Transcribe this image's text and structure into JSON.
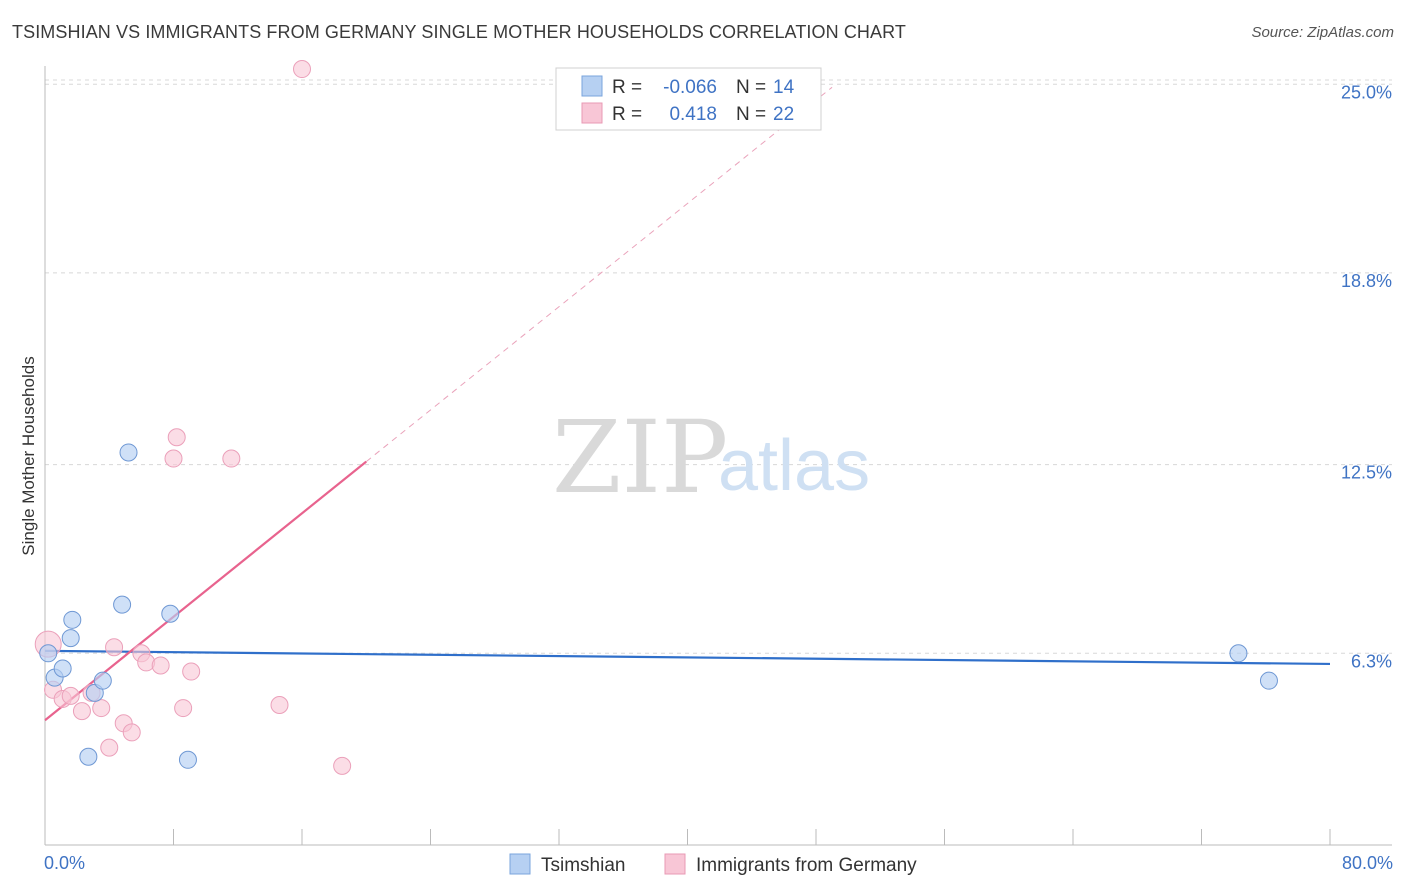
{
  "title": "TSIMSHIAN VS IMMIGRANTS FROM GERMANY SINGLE MOTHER HOUSEHOLDS CORRELATION CHART",
  "source": "Source: ZipAtlas.com",
  "watermark": {
    "zip": "ZIP",
    "atlas": "atlas"
  },
  "colors": {
    "blue": "#3f73c4",
    "blue_line": "#2f6fca",
    "blue_fill": "#b6d0f2",
    "pink_line": "#e8638e",
    "pink_fill": "#f8c6d6",
    "grid": "#d8d8d8"
  },
  "legend": {
    "rows": [
      {
        "r_label": "R =",
        "r_value": "-0.066",
        "n_label": "N =",
        "n_value": "14"
      },
      {
        "r_label": "R =",
        "r_value": "0.418",
        "n_label": "N =",
        "n_value": "22"
      }
    ]
  },
  "chart_data": {
    "type": "scatter",
    "xlabel": "",
    "ylabel": "Single Mother Households",
    "xlim": [
      0,
      80
    ],
    "ylim": [
      0,
      25.6
    ],
    "x_tick_labels": [
      "0.0%",
      "80.0%"
    ],
    "y_ticks": [
      6.3,
      12.5,
      18.8,
      25.0
    ],
    "y_tick_labels": [
      "6.3%",
      "12.5%",
      "18.8%",
      "25.0%"
    ],
    "series": [
      {
        "name": "Tsimshian",
        "r": -0.066,
        "n": 14,
        "points": [
          [
            0.2,
            6.3
          ],
          [
            0.6,
            5.5
          ],
          [
            1.1,
            5.8
          ],
          [
            1.6,
            6.8
          ],
          [
            1.7,
            7.4
          ],
          [
            2.7,
            2.9
          ],
          [
            3.1,
            5.0
          ],
          [
            3.6,
            5.4
          ],
          [
            4.8,
            7.9
          ],
          [
            5.2,
            12.9
          ],
          [
            7.8,
            7.6
          ],
          [
            8.9,
            2.8
          ],
          [
            74.3,
            6.3
          ],
          [
            76.2,
            5.4
          ]
        ],
        "trend": {
          "x0": 0,
          "y0": 6.38,
          "x1": 80,
          "y1": 5.95
        }
      },
      {
        "name": "Immigrants from Germany",
        "r": 0.418,
        "n": 22,
        "points": [
          [
            0.2,
            6.6
          ],
          [
            0.5,
            5.1
          ],
          [
            1.1,
            4.8
          ],
          [
            1.6,
            4.9
          ],
          [
            2.3,
            4.4
          ],
          [
            2.9,
            5.0
          ],
          [
            3.5,
            4.5
          ],
          [
            4.0,
            3.2
          ],
          [
            4.3,
            6.5
          ],
          [
            4.9,
            4.0
          ],
          [
            5.4,
            3.7
          ],
          [
            6.0,
            6.3
          ],
          [
            6.3,
            6.0
          ],
          [
            7.2,
            5.9
          ],
          [
            8.0,
            12.7
          ],
          [
            8.2,
            13.4
          ],
          [
            8.6,
            4.5
          ],
          [
            9.1,
            5.7
          ],
          [
            11.6,
            12.7
          ],
          [
            14.6,
            4.6
          ],
          [
            16.0,
            25.5
          ],
          [
            18.5,
            2.6
          ]
        ],
        "trend": {
          "x0": 0,
          "y0": 4.1,
          "x1": 20,
          "y1": 12.6
        },
        "trend_extended": {
          "x0": 20,
          "y0": 12.6,
          "x1": 49,
          "y1": 24.9
        }
      }
    ]
  }
}
